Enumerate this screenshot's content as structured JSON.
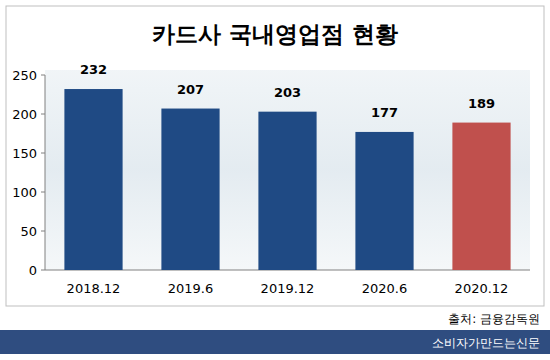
{
  "chart_data": {
    "type": "bar",
    "title": "카드사 국내영업점 현황",
    "categories": [
      "2018.12",
      "2019.6",
      "2019.12",
      "2020.6",
      "2020.12"
    ],
    "values": [
      232,
      207,
      203,
      177,
      189
    ],
    "colors": [
      "#1f4a84",
      "#1f4a84",
      "#1f4a84",
      "#1f4a84",
      "#c0504d"
    ],
    "ylim": [
      0,
      250
    ],
    "yticks": [
      0,
      50,
      100,
      150,
      200,
      250
    ],
    "grid": false,
    "data_labels": true,
    "annotations": [
      "출처: 금융감독원",
      "소비자가만드는신문"
    ]
  }
}
